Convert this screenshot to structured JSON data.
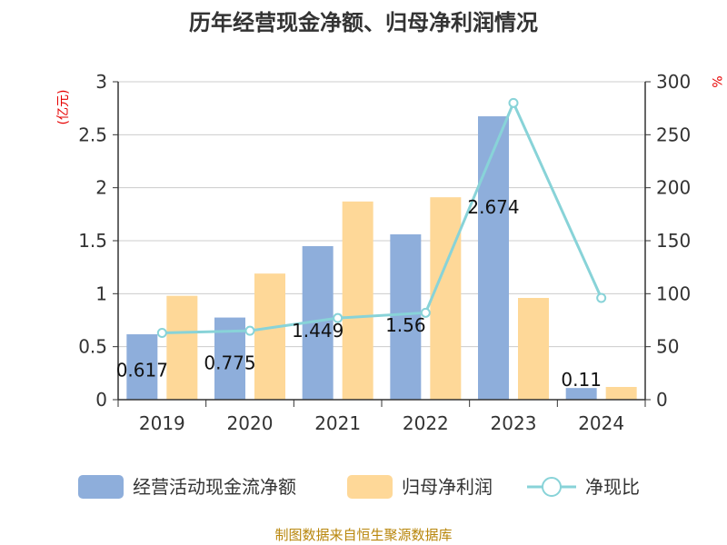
{
  "chart_data": {
    "type": "bar",
    "title": "历年经营现金净额、归母净利润情况",
    "categories": [
      "2019",
      "2020",
      "2021",
      "2022",
      "2023",
      "2024"
    ],
    "series": [
      {
        "name": "经营活动现金流净额",
        "kind": "bar",
        "axis": "left",
        "color": "#8eaedb",
        "values": [
          0.617,
          0.775,
          1.449,
          1.56,
          2.674,
          0.11
        ],
        "labels": [
          "0.617",
          "0.775",
          "1.449",
          "1.56",
          "2.674",
          "0.11"
        ]
      },
      {
        "name": "归母净利润",
        "kind": "bar",
        "axis": "left",
        "color": "#fed898",
        "values": [
          0.98,
          1.19,
          1.87,
          1.91,
          0.96,
          0.12
        ]
      },
      {
        "name": "净现比",
        "kind": "line",
        "axis": "right",
        "color": "#88d3d8",
        "values": [
          63,
          65,
          77,
          82,
          280,
          96
        ]
      }
    ],
    "y_left": {
      "unit": "(亿元)",
      "ylim": [
        0,
        3
      ],
      "ticks": [
        "0",
        "0.5",
        "1",
        "1.5",
        "2",
        "2.5",
        "3"
      ]
    },
    "y_right": {
      "unit": "%",
      "ylim": [
        0,
        300
      ],
      "ticks": [
        "0",
        "50",
        "100",
        "150",
        "200",
        "250",
        "300"
      ]
    },
    "grid": true,
    "legend_position": "bottom"
  },
  "source": "制图数据来自恒生聚源数据库"
}
